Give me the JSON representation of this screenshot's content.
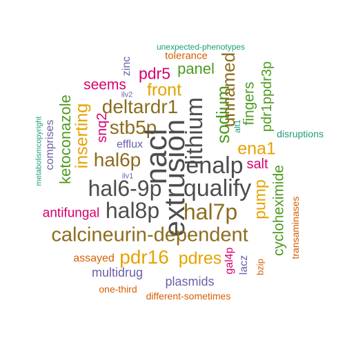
{
  "colors": {
    "dark_gray": "#4d4d4d",
    "brown": "#8c6d1f",
    "orange": "#d55e00",
    "green": "#4d9a1f",
    "gold": "#e6a300",
    "magenta": "#d6006f",
    "purple": "#6a5fa8",
    "teal": "#1b9e77"
  },
  "words": [
    {
      "text": "unexpected-phenotypes",
      "color": "teal"
    },
    {
      "text": "tolerance",
      "color": "orange"
    },
    {
      "text": "zinc",
      "color": "purple"
    },
    {
      "text": "pdr5",
      "color": "magenta"
    },
    {
      "text": "panel",
      "color": "green"
    },
    {
      "text": "seems",
      "color": "magenta"
    },
    {
      "text": "front",
      "color": "gold"
    },
    {
      "text": "ilv2",
      "color": "purple"
    },
    {
      "text": "sodium",
      "color": "green"
    },
    {
      "text": "unnamed",
      "color": "brown"
    },
    {
      "text": "pdr1ppdr3p",
      "color": "green"
    },
    {
      "text": "fingers",
      "color": "green"
    },
    {
      "text": "deltardr1",
      "color": "brown"
    },
    {
      "text": "metabolismcopyright",
      "color": "teal"
    },
    {
      "text": "comprises",
      "color": "purple"
    },
    {
      "text": "ketoconazole",
      "color": "green"
    },
    {
      "text": "inserting",
      "color": "gold"
    },
    {
      "text": "snq2",
      "color": "magenta"
    },
    {
      "text": "stb5p",
      "color": "brown"
    },
    {
      "text": "nacl",
      "color": "dark_gray"
    },
    {
      "text": "lithium",
      "color": "dark_gray"
    },
    {
      "text": "alt1",
      "color": "teal"
    },
    {
      "text": "disruptions",
      "color": "teal"
    },
    {
      "text": "efflux",
      "color": "purple"
    },
    {
      "text": "ena1",
      "color": "gold"
    },
    {
      "text": "hal6p",
      "color": "brown"
    },
    {
      "text": "extrusion",
      "color": "dark_gray"
    },
    {
      "text": "enalp",
      "color": "dark_gray"
    },
    {
      "text": "salt",
      "color": "magenta"
    },
    {
      "text": "ilv1",
      "color": "purple"
    },
    {
      "text": "cycloheximide",
      "color": "green"
    },
    {
      "text": "hal6-9p",
      "color": "dark_gray"
    },
    {
      "text": "qualify",
      "color": "dark_gray"
    },
    {
      "text": "pump",
      "color": "gold"
    },
    {
      "text": "transaminases",
      "color": "orange"
    },
    {
      "text": "antifungal",
      "color": "magenta"
    },
    {
      "text": "hal8p",
      "color": "dark_gray"
    },
    {
      "text": "hal7p",
      "color": "brown"
    },
    {
      "text": "calcineurin-dependent",
      "color": "brown"
    },
    {
      "text": "assayed",
      "color": "orange"
    },
    {
      "text": "pdr16",
      "color": "gold"
    },
    {
      "text": "pdres",
      "color": "gold"
    },
    {
      "text": "gal4p",
      "color": "magenta"
    },
    {
      "text": "lacz",
      "color": "purple"
    },
    {
      "text": "bzip",
      "color": "orange"
    },
    {
      "text": "multidrug",
      "color": "purple"
    },
    {
      "text": "plasmids",
      "color": "purple"
    },
    {
      "text": "one-third",
      "color": "orange"
    },
    {
      "text": "different-sometimes",
      "color": "orange"
    }
  ]
}
